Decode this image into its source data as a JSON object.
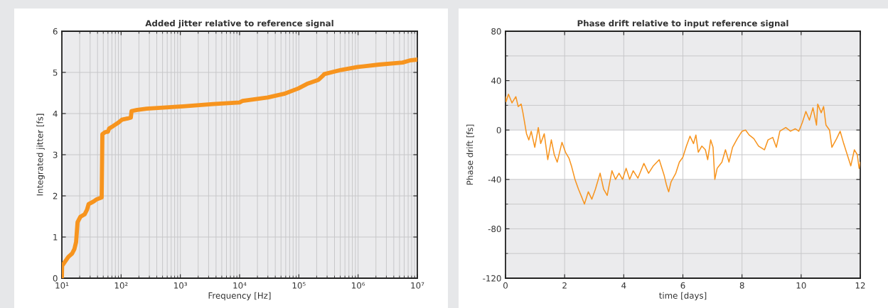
{
  "chart_data": [
    {
      "type": "line",
      "title": "Added jitter relative to reference signal",
      "xlabel": "Frequency [Hz]",
      "ylabel": "Integrated jitter [fs]",
      "log": "x",
      "grid": true,
      "xlim": [
        10,
        10000000
      ],
      "ylim": [
        0,
        6
      ],
      "xticks": [
        {
          "value": 10,
          "label": "10¹"
        },
        {
          "value": 20,
          "label": null
        },
        {
          "value": 30,
          "label": null
        },
        {
          "value": 40,
          "label": null
        },
        {
          "value": 50,
          "label": null
        },
        {
          "value": 60,
          "label": null
        },
        {
          "value": 70,
          "label": null
        },
        {
          "value": 80,
          "label": null
        },
        {
          "value": 90,
          "label": null
        },
        {
          "value": 100,
          "label": "10²"
        },
        {
          "value": 200,
          "label": null
        },
        {
          "value": 300,
          "label": null
        },
        {
          "value": 400,
          "label": null
        },
        {
          "value": 500,
          "label": null
        },
        {
          "value": 600,
          "label": null
        },
        {
          "value": 700,
          "label": null
        },
        {
          "value": 800,
          "label": null
        },
        {
          "value": 900,
          "label": null
        },
        {
          "value": 1000,
          "label": "10³"
        },
        {
          "value": 2000,
          "label": null
        },
        {
          "value": 3000,
          "label": null
        },
        {
          "value": 4000,
          "label": null
        },
        {
          "value": 5000,
          "label": null
        },
        {
          "value": 6000,
          "label": null
        },
        {
          "value": 7000,
          "label": null
        },
        {
          "value": 8000,
          "label": null
        },
        {
          "value": 9000,
          "label": null
        },
        {
          "value": 10000,
          "label": "10⁴"
        },
        {
          "value": 20000,
          "label": null
        },
        {
          "value": 30000,
          "label": null
        },
        {
          "value": 40000,
          "label": null
        },
        {
          "value": 50000,
          "label": null
        },
        {
          "value": 60000,
          "label": null
        },
        {
          "value": 70000,
          "label": null
        },
        {
          "value": 80000,
          "label": null
        },
        {
          "value": 90000,
          "label": null
        },
        {
          "value": 100000,
          "label": "10⁵"
        },
        {
          "value": 200000,
          "label": null
        },
        {
          "value": 300000,
          "label": null
        },
        {
          "value": 400000,
          "label": null
        },
        {
          "value": 500000,
          "label": null
        },
        {
          "value": 600000,
          "label": null
        },
        {
          "value": 700000,
          "label": null
        },
        {
          "value": 800000,
          "label": null
        },
        {
          "value": 900000,
          "label": null
        },
        {
          "value": 1000000,
          "label": "10⁶"
        },
        {
          "value": 2000000,
          "label": null
        },
        {
          "value": 3000000,
          "label": null
        },
        {
          "value": 4000000,
          "label": null
        },
        {
          "value": 5000000,
          "label": null
        },
        {
          "value": 6000000,
          "label": null
        },
        {
          "value": 7000000,
          "label": null
        },
        {
          "value": 8000000,
          "label": null
        },
        {
          "value": 9000000,
          "label": null
        },
        {
          "value": 10000000,
          "label": "10⁷"
        }
      ],
      "yticks": [
        0,
        1,
        2,
        3,
        4,
        5,
        6
      ],
      "series": [
        {
          "color": "#f7941e",
          "x": [
            10,
            10.1,
            12.9,
            14.9,
            16.3,
            17.4,
            18.4,
            20.5,
            24.2,
            26.5,
            28.3,
            34,
            39,
            47,
            48.3,
            54,
            60,
            63,
            74,
            90,
            103,
            129,
            146,
            150,
            187,
            270,
            980,
            3560,
            10000,
            11300,
            29700,
            56500,
            98000,
            142000,
            215000,
            251000,
            270000,
            515000,
            982000,
            2250000,
            5650000,
            7450000,
            10000000
          ],
          "values": [
            0,
            0.3,
            0.52,
            0.6,
            0.71,
            0.88,
            1.36,
            1.49,
            1.55,
            1.66,
            1.8,
            1.86,
            1.92,
            1.96,
            3.5,
            3.55,
            3.56,
            3.64,
            3.7,
            3.78,
            3.85,
            3.88,
            3.9,
            4.06,
            4.09,
            4.12,
            4.17,
            4.23,
            4.27,
            4.31,
            4.39,
            4.48,
            4.61,
            4.73,
            4.82,
            4.91,
            4.96,
            5.06,
            5.13,
            5.19,
            5.24,
            5.29,
            5.31
          ]
        }
      ]
    },
    {
      "type": "line",
      "title": "Phase drift relative to input reference signal",
      "xlabel": "time [days]",
      "ylabel": "Phase drift [fs]",
      "grid": true,
      "xlim": [
        0,
        12
      ],
      "ylim": [
        -120,
        80
      ],
      "xticks": [
        0,
        2,
        4,
        6,
        8,
        10,
        12
      ],
      "yticks": [
        -120,
        {
          "value": -100,
          "label": null
        },
        -80,
        {
          "value": -60,
          "label": null
        },
        -40,
        {
          "value": -20,
          "label": null
        },
        0,
        {
          "value": 20,
          "label": null
        },
        40,
        {
          "value": 60,
          "label": null
        },
        80
      ],
      "bands": [
        {
          "axis": "y",
          "from": -40,
          "to": 0,
          "color": "#ffffff"
        }
      ],
      "series": [
        {
          "color": "#f7941e",
          "x": [
            0,
            0.02,
            0.1,
            0.22,
            0.35,
            0.43,
            0.53,
            0.59,
            0.64,
            0.71,
            0.79,
            0.87,
            0.99,
            1.11,
            1.19,
            1.31,
            1.43,
            1.55,
            1.65,
            1.75,
            1.91,
            2.03,
            2.15,
            2.23,
            2.35,
            2.47,
            2.59,
            2.67,
            2.8,
            2.92,
            3.04,
            3.2,
            3.32,
            3.44,
            3.6,
            3.72,
            3.84,
            3.96,
            4.08,
            4.2,
            4.32,
            4.48,
            4.68,
            4.84,
            5.0,
            5.2,
            5.37,
            5.44,
            5.49,
            5.52,
            5.6,
            5.76,
            5.88,
            6.0,
            6.12,
            6.24,
            6.36,
            6.44,
            6.52,
            6.64,
            6.76,
            6.84,
            6.94,
            7.02,
            7.08,
            7.16,
            7.32,
            7.44,
            7.56,
            7.68,
            7.84,
            8.0,
            8.12,
            8.24,
            8.4,
            8.56,
            8.76,
            8.88,
            9.04,
            9.16,
            9.28,
            9.48,
            9.64,
            9.8,
            9.92,
            10.04,
            10.16,
            10.28,
            10.4,
            10.52,
            10.56,
            10.68,
            10.76,
            10.84,
            10.96,
            11.04,
            11.2,
            11.32,
            11.44,
            11.56,
            11.68,
            11.8,
            11.9,
            11.96,
            12.0
          ],
          "values": [
            27,
            23,
            29,
            22,
            27,
            19,
            21,
            14,
            7,
            -3,
            -8,
            -1,
            -14,
            2,
            -11,
            -3,
            -24,
            -8,
            -20,
            -26,
            -10,
            -18,
            -23,
            -29,
            -40,
            -48,
            -55,
            -60,
            -50,
            -56,
            -48,
            -35,
            -48,
            -53,
            -33,
            -40,
            -35,
            -40,
            -31,
            -40,
            -33,
            -39,
            -27,
            -35,
            -29,
            -24,
            -37,
            -44,
            -48,
            -50,
            -42,
            -35,
            -26,
            -22,
            -13,
            -5,
            -11,
            -4,
            -18,
            -13,
            -16,
            -24,
            -8,
            -14,
            -40,
            -31,
            -26,
            -16,
            -26,
            -14,
            -7,
            -1,
            0,
            -4,
            -7,
            -13,
            -16,
            -8,
            -6,
            -14,
            -1,
            2,
            -1,
            1,
            -1,
            6,
            15,
            8,
            18,
            4,
            21,
            14,
            19,
            4,
            0,
            -14,
            -7,
            -1,
            -11,
            -20,
            -29,
            -16,
            -20,
            -31,
            -26
          ]
        }
      ]
    }
  ]
}
